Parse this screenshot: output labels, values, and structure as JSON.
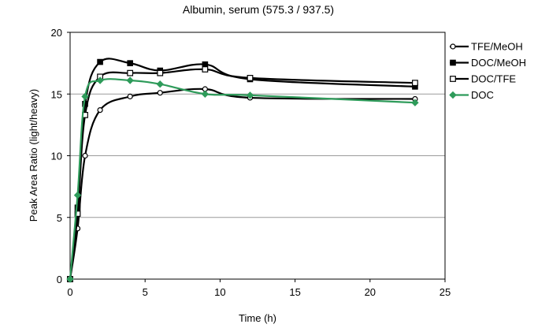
{
  "chart_data": {
    "type": "line",
    "title": "Albumin, serum (575.3 / 937.5)",
    "xlabel": "Time (h)",
    "ylabel": "Peak Area Ratio (light/heavy)",
    "xlim": [
      0,
      25
    ],
    "ylim": [
      0,
      20
    ],
    "xticks": [
      0,
      5,
      10,
      15,
      20,
      25
    ],
    "yticks": [
      0,
      5,
      10,
      15,
      20
    ],
    "grid": "horizontal",
    "legend": "right",
    "series": [
      {
        "name": "TFE/MeOH",
        "marker": "open-circle",
        "color": "#000000",
        "x": [
          0,
          0.5,
          1,
          2,
          4,
          6,
          9,
          12,
          23
        ],
        "y": [
          0,
          4.1,
          10.0,
          13.7,
          14.8,
          15.1,
          15.4,
          14.7,
          14.6
        ]
      },
      {
        "name": "DOC/MeOH",
        "marker": "filled-square",
        "color": "#000000",
        "x": [
          0,
          0.5,
          1,
          2,
          4,
          6,
          9,
          12,
          23
        ],
        "y": [
          0,
          5.8,
          14.2,
          17.6,
          17.5,
          16.9,
          17.4,
          16.2,
          15.6
        ]
      },
      {
        "name": "DOC/TFE",
        "marker": "open-square",
        "color": "#000000",
        "x": [
          0,
          0.5,
          1,
          2,
          4,
          6,
          9,
          12,
          23
        ],
        "y": [
          0,
          5.3,
          13.3,
          16.4,
          16.7,
          16.7,
          17.0,
          16.3,
          15.9
        ]
      },
      {
        "name": "DOC",
        "marker": "filled-diamond",
        "color": "#2e9b5a",
        "x": [
          0,
          0.5,
          1,
          2,
          4,
          6,
          9,
          12,
          23
        ],
        "y": [
          0,
          6.8,
          14.8,
          16.1,
          16.1,
          15.8,
          15.0,
          14.9,
          14.3
        ]
      }
    ]
  }
}
